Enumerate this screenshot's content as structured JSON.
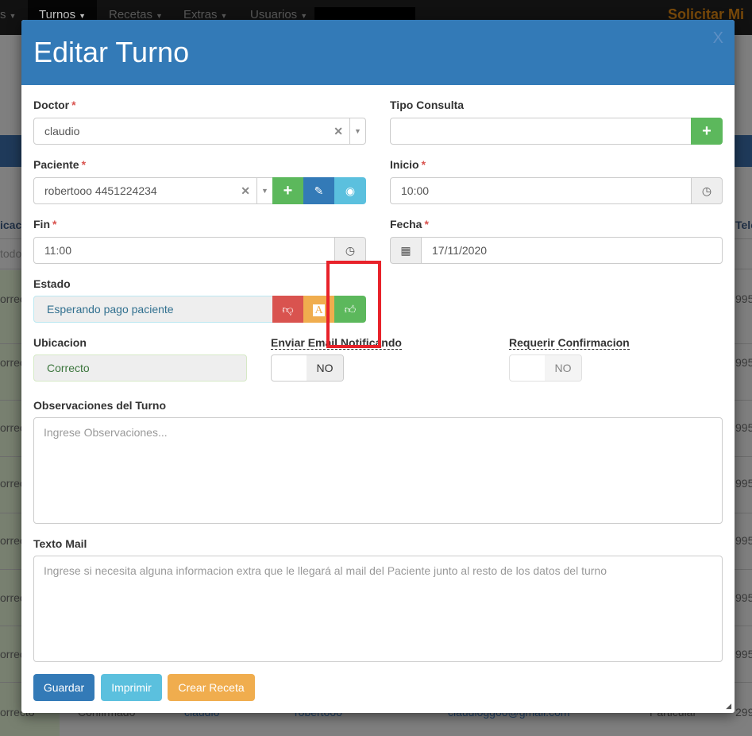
{
  "navbar": {
    "items": [
      {
        "label": "s"
      },
      {
        "label": "Turnos"
      },
      {
        "label": "Recetas"
      },
      {
        "label": "Extras"
      },
      {
        "label": "Usuarios"
      }
    ],
    "brand": "Solicitar Mi"
  },
  "background": {
    "col_left_header": "icac",
    "col_right_header": "Tele",
    "filter": "todos",
    "left_cell": "orrec",
    "right_cell": "995",
    "last_row": [
      "orrecto",
      "Confirmado",
      "claudio",
      "robertooo",
      "claudioggoo@gmail.com",
      "Particular",
      "2995"
    ]
  },
  "modal": {
    "title": "Editar Turno",
    "close": "X",
    "doctor": {
      "label": "Doctor",
      "value": "claudio"
    },
    "tipo_consulta": {
      "label": "Tipo Consulta",
      "value": ""
    },
    "paciente": {
      "label": "Paciente",
      "value": "robertooo 4451224234"
    },
    "inicio": {
      "label": "Inicio",
      "value": "10:00"
    },
    "fin": {
      "label": "Fin",
      "value": "11:00"
    },
    "fecha": {
      "label": "Fecha",
      "value": "17/11/2020"
    },
    "estado": {
      "label": "Estado",
      "value": "Esperando pago paciente",
      "letter_icon": "A"
    },
    "ubicacion": {
      "label": "Ubicacion",
      "value": "Correcto"
    },
    "enviar_email": {
      "label": "Enviar Email Notificando",
      "value": "NO"
    },
    "requerir_confirmacion": {
      "label": "Requerir Confirmacion",
      "value": "NO"
    },
    "observaciones": {
      "label": "Observaciones del Turno",
      "placeholder": "Ingrese Observaciones..."
    },
    "texto_mail": {
      "label": "Texto Mail",
      "placeholder": "Ingrese si necesita alguna informacion extra que le llegará al mail del Paciente junto al resto de los datos del turno"
    },
    "buttons": {
      "guardar": "Guardar",
      "imprimir": "Imprimir",
      "crear_receta": "Crear Receta"
    },
    "required_mark": "*"
  },
  "colors": {
    "primary": "#337ab7",
    "success": "#5cb85c",
    "info": "#5bc0de",
    "danger": "#d9534f",
    "warning": "#f0ad4e",
    "highlight": "#e8222a"
  }
}
